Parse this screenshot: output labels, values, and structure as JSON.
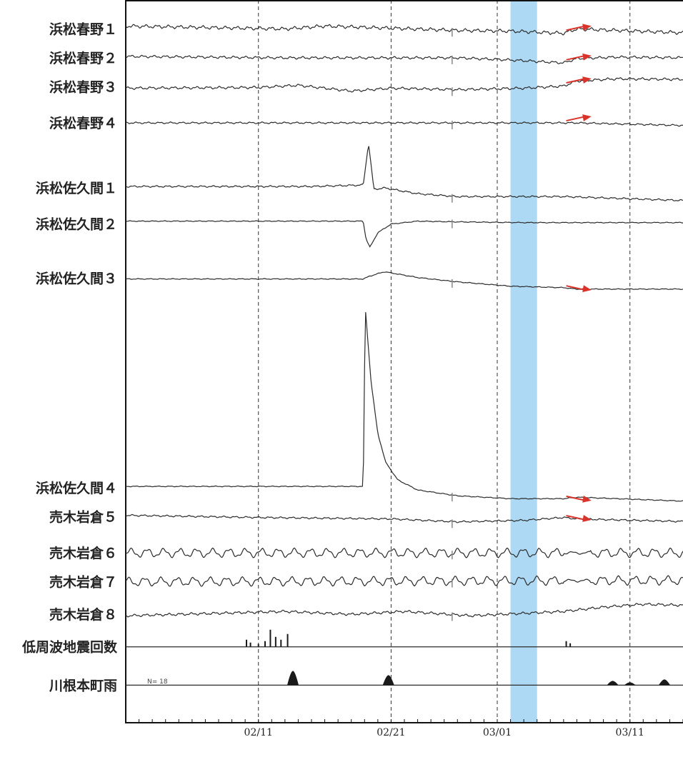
{
  "chart_data": {
    "type": "line",
    "title": "",
    "xlabel": "",
    "ylabel": "",
    "grid": true,
    "legend": "none",
    "x_ticks": [
      "02/11",
      "02/21",
      "03/01",
      "03/11"
    ],
    "x_range": [
      "02/01",
      "03/15"
    ],
    "highlight": {
      "from": "03/02",
      "to": "03/04",
      "color": "#9fd2f2"
    },
    "inset_note": "N= 18",
    "colors": {
      "trace": "#2b2b2b",
      "arrow": "#d9342b",
      "highlight": "#9fd2f2",
      "bar": "#1a1a1a",
      "step": "#e0442e"
    },
    "series": [
      {
        "name": "浜松春野１",
        "kind": "trend",
        "base": 0.04,
        "amp": 0.004,
        "arrow": true,
        "x": [
          0,
          12,
          15,
          25,
          29,
          33,
          34,
          37,
          43
        ],
        "y": [
          0.036,
          0.04,
          0.036,
          0.042,
          0.043,
          0.046,
          0.04,
          0.042,
          0.046
        ]
      },
      {
        "name": "浜松春野２",
        "kind": "trend",
        "base": 0.08,
        "amp": 0.003,
        "arrow": true,
        "x": [
          0,
          12,
          25,
          29,
          33,
          34,
          37,
          43
        ],
        "y": [
          0.078,
          0.08,
          0.08,
          0.083,
          0.087,
          0.081,
          0.079,
          0.08
        ]
      },
      {
        "name": "浜松春野３",
        "kind": "trend",
        "base": 0.12,
        "amp": 0.003,
        "arrow": true,
        "x": [
          0,
          10,
          13,
          17,
          20,
          25,
          30,
          33,
          34,
          37,
          43
        ],
        "y": [
          0.122,
          0.121,
          0.118,
          0.126,
          0.122,
          0.124,
          0.122,
          0.119,
          0.112,
          0.109,
          0.11
        ]
      },
      {
        "name": "浜松春野４",
        "kind": "trend",
        "base": 0.17,
        "amp": 0.002,
        "arrow": true,
        "x": [
          0,
          25,
          33,
          34,
          43
        ],
        "y": [
          0.17,
          0.17,
          0.17,
          0.17,
          0.174
        ]
      },
      {
        "name": "浜松佐久間１",
        "kind": "trend",
        "base": 0.26,
        "amp": 0.002,
        "arrow": false,
        "x": [
          0,
          14,
          17.9,
          18.3,
          18.7,
          19.5,
          22,
          25,
          29,
          33,
          43
        ],
        "y": [
          0.258,
          0.258,
          0.256,
          0.198,
          0.262,
          0.26,
          0.268,
          0.272,
          0.272,
          0.272,
          0.278
        ]
      },
      {
        "name": "浜松佐久間２",
        "kind": "trend",
        "base": 0.31,
        "amp": 0.001,
        "arrow": false,
        "x": [
          0,
          17.9,
          18.1,
          18.4,
          19,
          20,
          22,
          25,
          30,
          43
        ],
        "y": [
          0.306,
          0.306,
          0.33,
          0.342,
          0.322,
          0.31,
          0.306,
          0.307,
          0.308,
          0.308
        ]
      },
      {
        "name": "浜松佐久間３",
        "kind": "trend",
        "base": 0.385,
        "amp": 0.001,
        "arrow": true,
        "x": [
          0,
          17.9,
          18.4,
          19.5,
          22,
          25,
          29,
          33,
          34,
          43
        ],
        "y": [
          0.386,
          0.386,
          0.382,
          0.376,
          0.384,
          0.39,
          0.396,
          0.398,
          0.4,
          0.4
        ]
      },
      {
        "name": "浜松佐久間４",
        "kind": "trend",
        "base": 0.675,
        "amp": 0.001,
        "arrow": true,
        "x": [
          0,
          17.9,
          18.05,
          18.5,
          19.0,
          19.6,
          20.5,
          22,
          25,
          29,
          33,
          34,
          43
        ],
        "y": [
          0.673,
          0.673,
          0.425,
          0.53,
          0.6,
          0.64,
          0.664,
          0.678,
          0.686,
          0.69,
          0.69,
          0.688,
          0.694
        ]
      },
      {
        "name": "売木岩倉５",
        "kind": "trend",
        "base": 0.715,
        "amp": 0.002,
        "arrow": true,
        "x": [
          0,
          10,
          20,
          25,
          30,
          33,
          34,
          43
        ],
        "y": [
          0.713,
          0.716,
          0.718,
          0.722,
          0.72,
          0.716,
          0.718,
          0.722
        ]
      },
      {
        "name": "売木岩倉６",
        "kind": "wave",
        "base": 0.765,
        "amp": 0.005,
        "arrow": false,
        "x": [
          0,
          43
        ],
        "y": [
          0.765,
          0.765
        ]
      },
      {
        "name": "売木岩倉７",
        "kind": "wave",
        "base": 0.805,
        "amp": 0.005,
        "arrow": false,
        "x": [
          0,
          43
        ],
        "y": [
          0.805,
          0.803
        ]
      },
      {
        "name": "売木岩倉８",
        "kind": "trend",
        "base": 0.85,
        "amp": 0.003,
        "arrow": false,
        "x": [
          0,
          8,
          12,
          17,
          21,
          26,
          33,
          36,
          39,
          43
        ],
        "y": [
          0.852,
          0.848,
          0.846,
          0.85,
          0.846,
          0.852,
          0.846,
          0.84,
          0.836,
          0.838
        ]
      },
      {
        "name": "低周波地震回数",
        "kind": "bars",
        "base": 0.895,
        "arrow": false,
        "x": [
          9.1,
          9.4,
          10.0,
          10.5,
          10.9,
          11.3,
          11.7,
          12.2,
          33.2,
          33.5
        ],
        "y": [
          10,
          6,
          4,
          8,
          24,
          14,
          10,
          18,
          8,
          5
        ]
      },
      {
        "name": "川根本町雨",
        "kind": "rain",
        "base": 0.948,
        "arrow": false,
        "x": [
          12.6,
          19.8,
          36.7,
          38.0,
          40.6,
          44.5
        ],
        "y": [
          20,
          14,
          6,
          4,
          8,
          4
        ]
      }
    ]
  }
}
